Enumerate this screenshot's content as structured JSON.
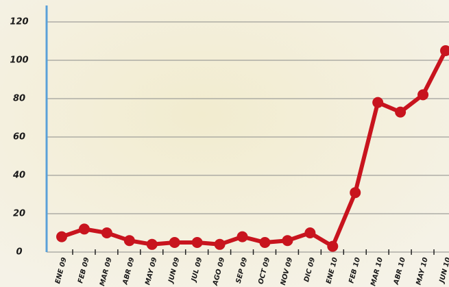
{
  "chart_data": {
    "type": "line",
    "categories": [
      "ENE 09",
      "FEB 09",
      "MAR 09",
      "ABR 09",
      "MAY 09",
      "JUN 09",
      "JUL 09",
      "AGO 09",
      "SEP 09",
      "OCT 09",
      "NOV 09",
      "DIC 09",
      "ENE 10",
      "FEB 10",
      "MAR 10",
      "ABR 10",
      "MAY 10",
      "JUN 10"
    ],
    "values": [
      8,
      12,
      10,
      6,
      4,
      5,
      5,
      4,
      8,
      5,
      6,
      10,
      3,
      31,
      78,
      73,
      82,
      105
    ],
    "color": "#c8141e",
    "ylim": [
      0,
      120
    ],
    "yticks": [
      0,
      20,
      40,
      60,
      80,
      100,
      120
    ],
    "grid": true
  }
}
